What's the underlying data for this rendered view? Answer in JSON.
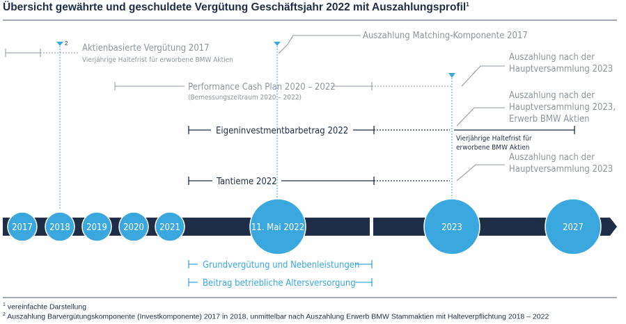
{
  "title": "Übersicht gewährte und geschuldete Vergütung Geschäftsjahr 2022 mit Auszahlungsprofil",
  "title_footnote_mark": "1",
  "colors": {
    "navy": "#1f2d46",
    "blue": "#3aa8de",
    "grey": "#8f959c",
    "rule": "#4a5468"
  },
  "timeline": {
    "years": [
      "2017",
      "2018",
      "2019",
      "2020",
      "2021",
      "11. Mai 2022",
      "2023",
      "2027"
    ]
  },
  "rows": {
    "aktien": {
      "marker": "2",
      "label": "Aktienbasierte Vergütung 2017",
      "sublabel": "Vierjährige Haltefrist für erworbene BMW Aktien"
    },
    "matching": {
      "label": "Auszahlung Matching-Komponente 2017"
    },
    "pcp": {
      "label": "Performance Cash Plan 2020 – 2022",
      "sublabel": "(Bemessungszeitraum 2020 – 2022)",
      "payout_line1": "Auszahlung nach der",
      "payout_line2": "Hauptversammlung 2023"
    },
    "eigen": {
      "label": "Eigeninvestmentbarbetrag 2022",
      "payout_line1": "Auszahlung nach der",
      "payout_line2": "Hauptversammlung 2023,",
      "payout_line3": "Erwerb BMW Aktien",
      "holding_line1": "Vierjährige Haltefrist für",
      "holding_line2": "erworbene BMW Aktien"
    },
    "tantieme": {
      "label": "Tantieme 2022",
      "payout_line1": "Auszahlung nach der",
      "payout_line2": "Hauptversammlung 2023"
    },
    "grund": {
      "label": "Grundvergütung und Nebenleistungen"
    },
    "beitrag": {
      "label": "Beitrag betriebliche Altersversorgung"
    }
  },
  "footnotes": {
    "n1_mark": "1",
    "n1_text": "vereinfachte Darstellung",
    "n2_mark": "2",
    "n2_text": "Auszahlung Barvergütungskomponente (Investkomponente) 2017 in 2018, unmittelbar nach Auszahlung Erwerb BMW Stammaktien mit Halteverpflichtung 2018 – 2022"
  }
}
